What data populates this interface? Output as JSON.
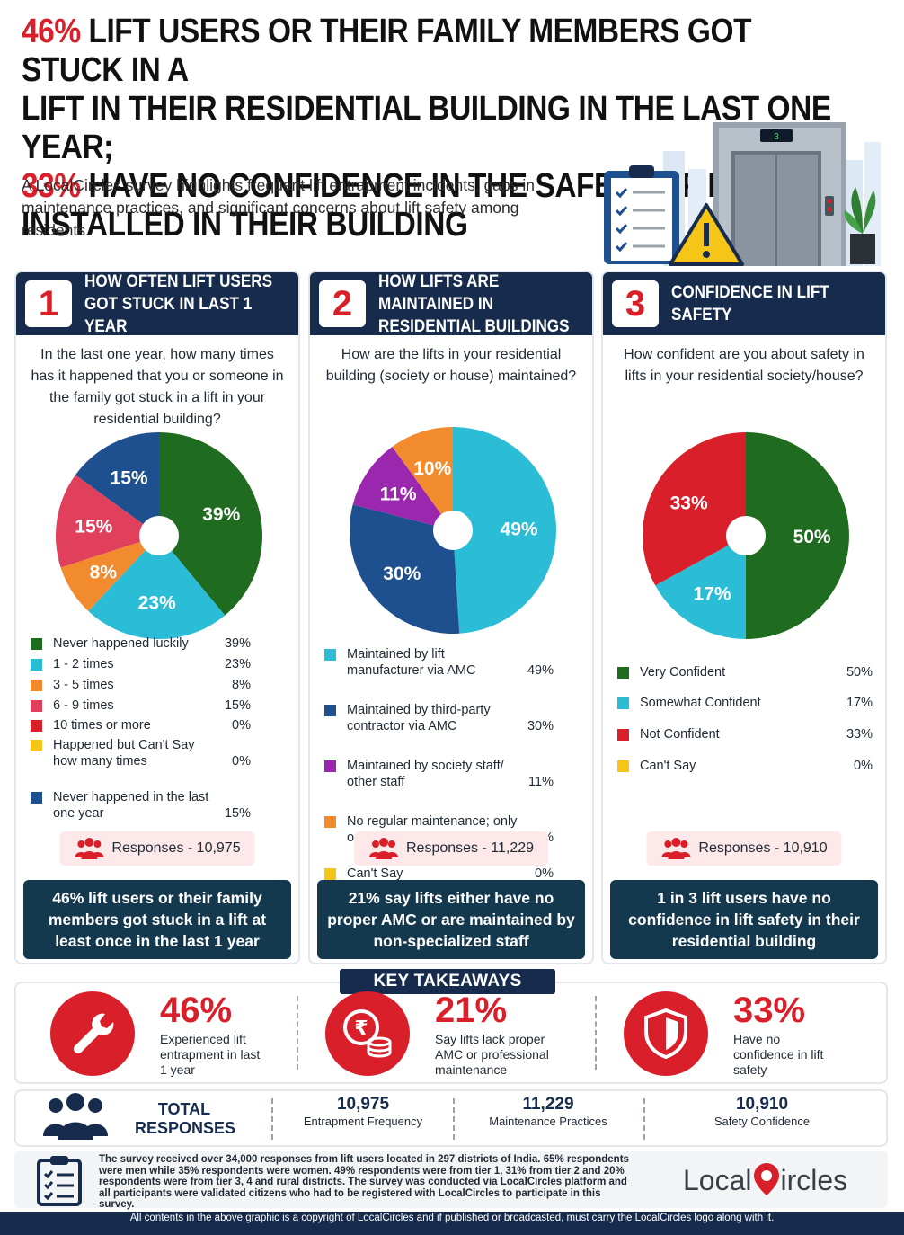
{
  "header": {
    "line1_red": "46%",
    "line1_rest": " LIFT USERS OR THEIR FAMILY MEMBERS GOT STUCK IN A",
    "line2": "LIFT IN THEIR RESIDENTIAL BUILDING IN THE LAST ONE YEAR;",
    "line3_red": "33%",
    "line3_rest": " HAVE NO CONFIDENCE IN THE SAFETY OF LIFTS",
    "line4": "INSTALLED IN THEIR BUILDING",
    "subtitle": "A LocalCircles survey highlights frequent lift entrapment incidents, gaps in maintenance practices, and significant concerns about lift safety among residents.",
    "elevator_display": "3"
  },
  "colors": {
    "navy": "#172b4d",
    "red": "#d9202a",
    "dark_green": "#1f6b1f",
    "cyan": "#2bbdd6",
    "orange": "#f28a2e",
    "pink": "#e0405b",
    "yellow": "#f5c518",
    "blue": "#1e4f8f",
    "purple": "#9b27af",
    "teal_summary": "#14394f"
  },
  "chart_data": [
    {
      "type": "pie",
      "number": "1",
      "panel_title": "HOW OFTEN LIFT USERS GOT STUCK IN LAST 1 YEAR",
      "question": "In the last one year, how many times has it happened that you or someone in the family got stuck in a lift in your residential building?",
      "slices": [
        {
          "label": "Never happened luckily",
          "value": 39,
          "display": "39%",
          "color": "#1f6b1f"
        },
        {
          "label": "1 - 2 times",
          "value": 23,
          "display": "23%",
          "color": "#2bbdd6"
        },
        {
          "label": "3 - 5 times",
          "value": 8,
          "display": "8%",
          "color": "#f28a2e"
        },
        {
          "label": "6 - 9 times",
          "value": 15,
          "display": "15%",
          "color": "#e0405b"
        },
        {
          "label": "10 times or more",
          "value": 0,
          "display": "0%",
          "color": "#d9202a"
        },
        {
          "label": "Happened but Can't Say how many times",
          "value": 0,
          "display": "0%",
          "color": "#f5c518"
        },
        {
          "label": "Never happened in the last one year",
          "value": 15,
          "display": "15%",
          "color": "#1e4f8f"
        }
      ],
      "responses": "Responses - 10,975",
      "summary": "46% lift users or their family members got stuck in a lift at least once in the last 1 year"
    },
    {
      "type": "pie",
      "number": "2",
      "panel_title": "HOW LIFTS ARE MAINTAINED IN RESIDENTIAL BUILDINGS",
      "question": "How are the lifts in your residential building (society or house) maintained?",
      "slices": [
        {
          "label": "Maintained by lift manufacturer via AMC",
          "value": 49,
          "display": "49%",
          "color": "#2bbdd6"
        },
        {
          "label": "Maintained by third-party contractor via AMC",
          "value": 30,
          "display": "30%",
          "color": "#1e4f8f"
        },
        {
          "label": "Maintained by society staff/ other staff",
          "value": 11,
          "display": "11%",
          "color": "#9b27af"
        },
        {
          "label": "No regular maintenance; only on-call ad hoc",
          "value": 10,
          "display": "10%",
          "color": "#f28a2e"
        },
        {
          "label": "Can't Say",
          "value": 0,
          "display": "0%",
          "color": "#f5c518"
        }
      ],
      "responses": "Responses - 11,229",
      "summary": "21% say lifts either have no proper AMC or are maintained by non-specialized staff"
    },
    {
      "type": "pie",
      "number": "3",
      "panel_title": "CONFIDENCE IN LIFT SAFETY",
      "question": "How confident are you about safety in lifts in your residential society/house?",
      "slices": [
        {
          "label": "Very Confident",
          "value": 50,
          "display": "50%",
          "color": "#1f6b1f"
        },
        {
          "label": "Somewhat Confident",
          "value": 17,
          "display": "17%",
          "color": "#2bbdd6"
        },
        {
          "label": "Not Confident",
          "value": 33,
          "display": "33%",
          "color": "#d9202a"
        },
        {
          "label": "Can't Say",
          "value": 0,
          "display": "0%",
          "color": "#f5c518"
        }
      ],
      "responses": "Responses - 10,910",
      "summary": "1 in 3 lift users have no confidence in lift safety in their residential building"
    }
  ],
  "takeaways": {
    "title": "KEY TAKEAWAYS",
    "items": [
      {
        "pct": "46%",
        "desc": "Experienced lift entrapment in last 1 year",
        "icon": "wrench-icon"
      },
      {
        "pct": "21%",
        "desc": "Say lifts lack proper AMC or professional maintenance",
        "icon": "rupee-coins-icon"
      },
      {
        "pct": "33%",
        "desc": "Have no confidence in lift safety",
        "icon": "shield-icon"
      }
    ]
  },
  "totals": {
    "label": "TOTAL RESPONSES",
    "items": [
      {
        "value": "10,975",
        "label": "Entrapment Frequency"
      },
      {
        "value": "11,229",
        "label": "Maintenance Practices"
      },
      {
        "value": "10,910",
        "label": "Safety Confidence"
      }
    ]
  },
  "footer": {
    "note": "The survey received over 34,000 responses from lift users located in 297 districts of India. 65% respondents were men while 35% respondents were women. 49% respondents were from tier 1, 31% from tier 2 and 20% respondents were from tier 3, 4 and rural districts. The survey was conducted via LocalCircles platform and all participants were validated citizens who had to be registered with LocalCircles to participate in this survey.",
    "brand_left": "Local",
    "brand_right": "ircles",
    "copyright": "All contents in the above graphic is a copyright of LocalCircles and if published or broadcasted, must carry the LocalCircles logo along with it."
  }
}
